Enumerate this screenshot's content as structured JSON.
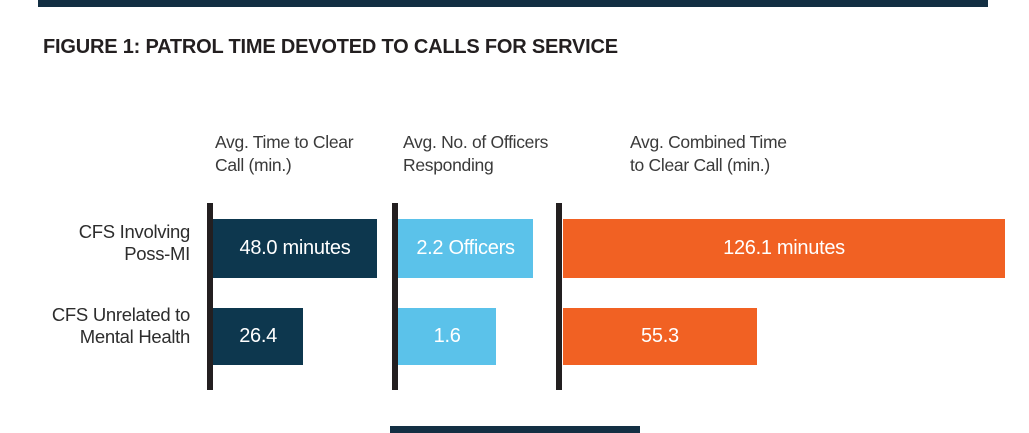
{
  "figure": {
    "title": "FIGURE 1: PATROL TIME DEVOTED TO CALLS FOR SERVICE"
  },
  "colors": {
    "navy": "#0d374e",
    "light_blue": "#5bc2ea",
    "orange": "#f16123",
    "axis_line": "#231f20",
    "page_rule": "#132f43",
    "bar_label_text": "#ffffff"
  },
  "rows": [
    {
      "label_line1": "CFS Involving",
      "label_line2": "Poss-MI"
    },
    {
      "label_line1": "CFS Unrelated to",
      "label_line2": "Mental Health"
    }
  ],
  "chart_data": {
    "type": "bar",
    "orientation": "horizontal",
    "title": "FIGURE 1: PATROL TIME DEVOTED TO CALLS FOR SERVICE",
    "categories": [
      "CFS Involving Poss-MI",
      "CFS Unrelated to Mental Health"
    ],
    "series": [
      {
        "name": "Avg. Time to Clear Call (min.)",
        "header_line1": "Avg. Time to Clear",
        "header_line2": "Call (min.)",
        "unit": "minutes",
        "color": "#0d374e",
        "values": [
          48.0,
          26.4
        ],
        "bar_labels": [
          "48.0 minutes",
          "26.4"
        ]
      },
      {
        "name": "Avg. No. of Officers Responding",
        "header_line1": "Avg. No. of Officers",
        "header_line2": "Responding",
        "unit": "officers",
        "color": "#5bc2ea",
        "values": [
          2.2,
          1.6
        ],
        "bar_labels": [
          "2.2 Officers",
          "1.6"
        ]
      },
      {
        "name": "Avg. Combined Time to Clear Call (min.)",
        "header_line1": "Avg. Combined Time",
        "header_line2": "to Clear Call (min.)",
        "unit": "minutes",
        "color": "#f16123",
        "values": [
          126.1,
          55.3
        ],
        "bar_labels": [
          "126.1 minutes",
          "55.3"
        ]
      }
    ],
    "legend": "none",
    "grid": false,
    "value_labels": "inside-center"
  }
}
